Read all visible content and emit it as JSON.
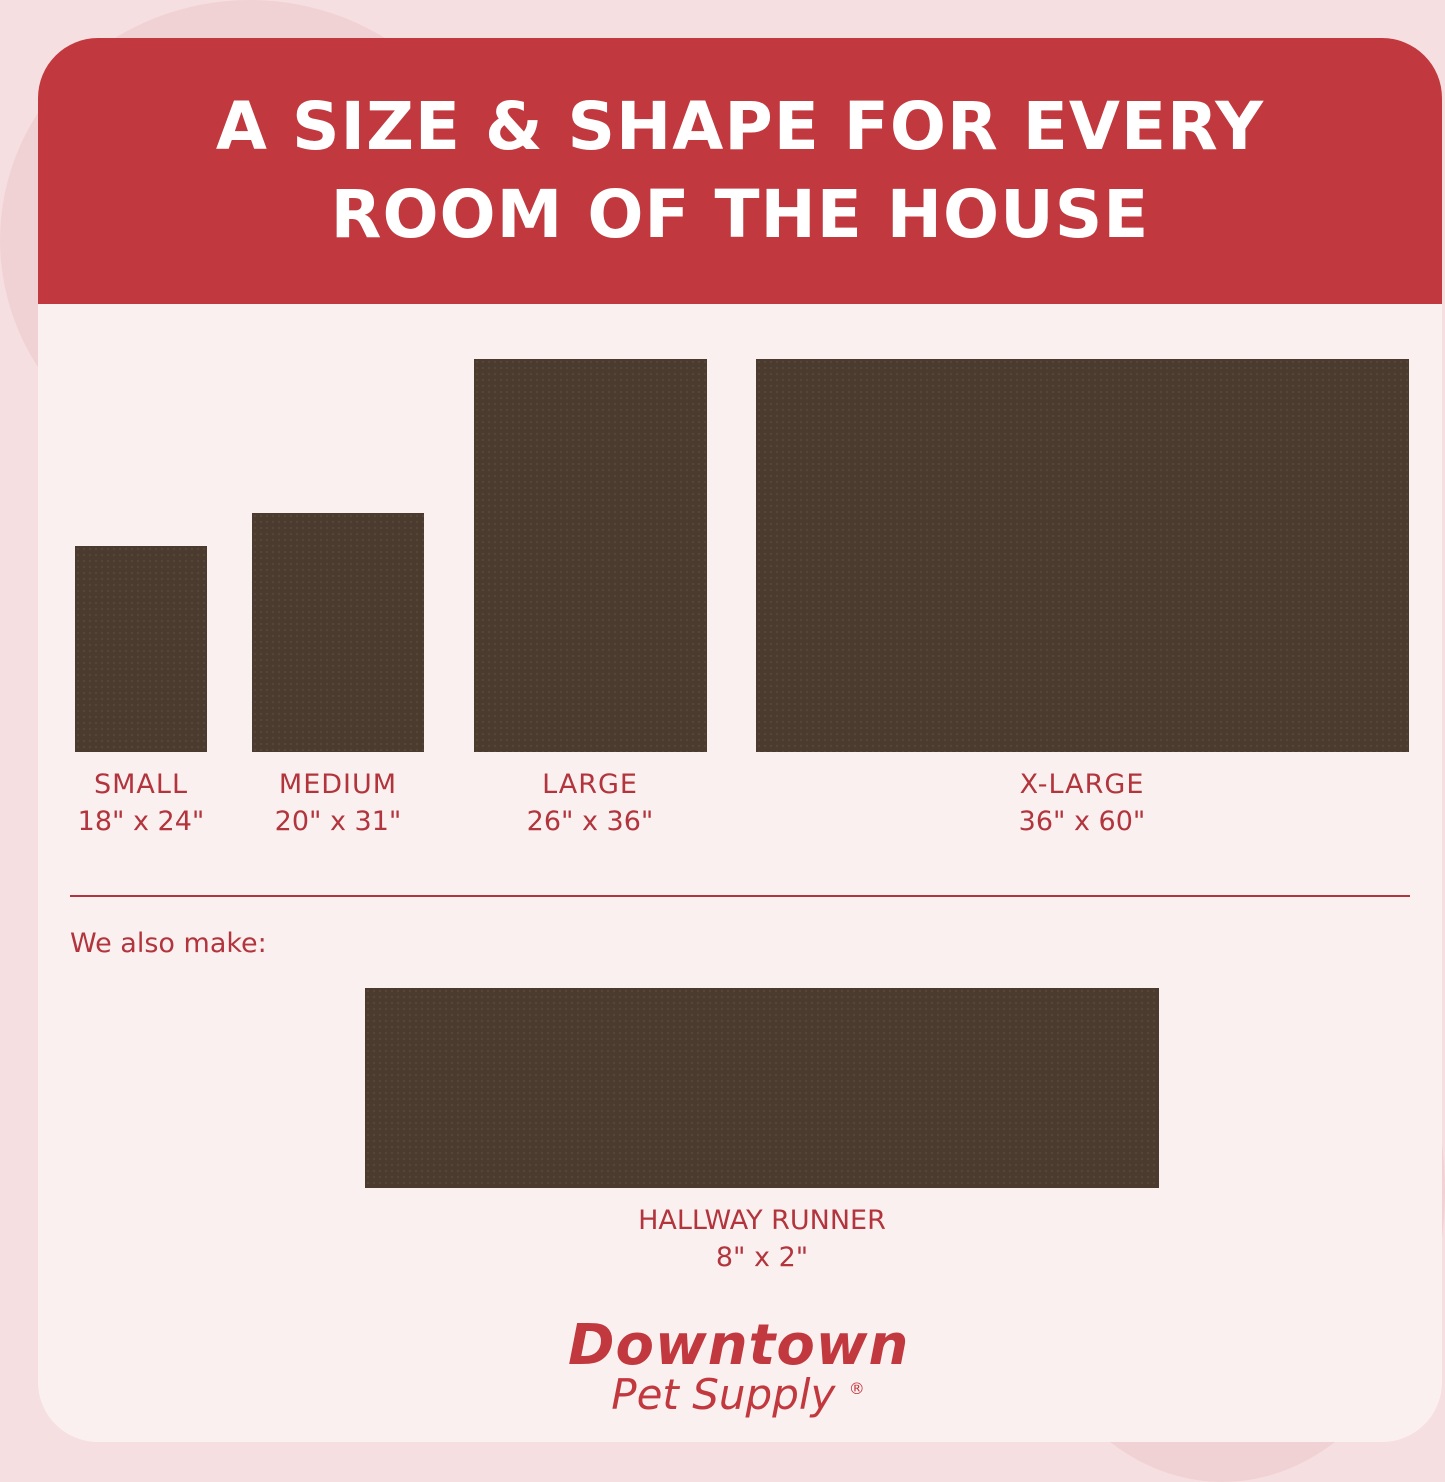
{
  "header": {
    "title_line1": "A SIZE & SHAPE FOR EVERY",
    "title_line2": "ROOM OF THE HOUSE"
  },
  "sizes": [
    {
      "name": "SMALL",
      "dims": "18\" x 24\""
    },
    {
      "name": "MEDIUM",
      "dims": "20\" x 31\""
    },
    {
      "name": "LARGE",
      "dims": "26\" x 36\""
    },
    {
      "name": "X-LARGE",
      "dims": "36\" x 60\""
    }
  ],
  "also": {
    "label": "We also make:",
    "name": "HALLWAY RUNNER",
    "dims": "8\" x 2\""
  },
  "brand": {
    "line1": "Downtown",
    "line2": "Pet Supply",
    "mark": "®"
  },
  "colors": {
    "brand_red": "#c1393f",
    "mat": "#4a3b2e",
    "card": "#fbf0f0"
  }
}
